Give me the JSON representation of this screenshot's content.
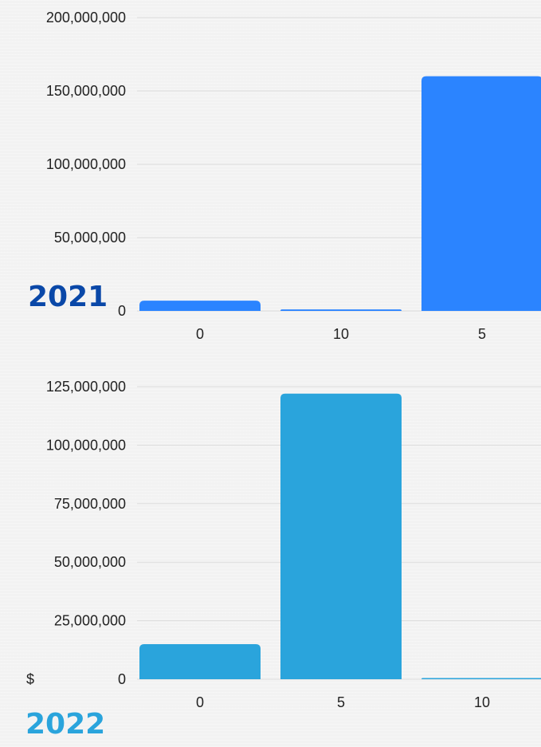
{
  "colors": {
    "bar_2021": "#2b84ff",
    "bar_2022": "#2aa4dc",
    "year_2021": "#0a48a8",
    "year_2022": "#2aa4dc",
    "grid": "#dcdcdc"
  },
  "chart_data": [
    {
      "type": "bar",
      "title": "2021",
      "categories": [
        "0",
        "10",
        "5"
      ],
      "values": [
        7000000,
        1000000,
        160000000
      ],
      "ylim": [
        0,
        200000000
      ],
      "yticks": [
        0,
        50000000,
        100000000,
        150000000,
        200000000
      ],
      "ytick_labels": [
        "0",
        "50,000,000",
        "100,000,000",
        "150,000,000",
        "200,000,000"
      ],
      "grid": true
    },
    {
      "type": "bar",
      "title": "2022",
      "currency_symbol": "$",
      "categories": [
        "0",
        "5",
        "10"
      ],
      "values": [
        15000000,
        122000000,
        500000
      ],
      "ylim": [
        0,
        125000000
      ],
      "yticks": [
        0,
        25000000,
        50000000,
        75000000,
        100000000,
        125000000
      ],
      "ytick_labels": [
        "0",
        "25,000,000",
        "50,000,000",
        "75,000,000",
        "100,000,000",
        "125,000,000"
      ],
      "grid": true
    }
  ]
}
